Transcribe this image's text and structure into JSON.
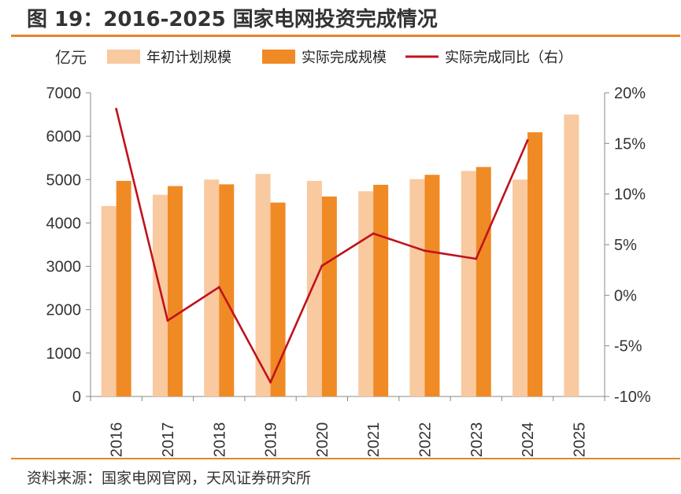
{
  "figure": {
    "title": "图 19：2016-2025 国家电网投资完成情况",
    "source": "资料来源：国家电网官网，天风证券研究所"
  },
  "chart_data": {
    "type": "bar",
    "categories": [
      "2016",
      "2017",
      "2018",
      "2019",
      "2020",
      "2021",
      "2022",
      "2023",
      "2024",
      "2025"
    ],
    "y_unit_label": "亿元",
    "ylim": [
      0,
      7000
    ],
    "y_ticks": [
      "0",
      "1000",
      "2000",
      "3000",
      "4000",
      "5000",
      "6000",
      "7000"
    ],
    "y2lim": [
      -10,
      20
    ],
    "y2_ticks": [
      "-10%",
      "-5%",
      "0%",
      "5%",
      "10%",
      "15%",
      "20%"
    ],
    "legend_position": "top",
    "grid": false,
    "series": [
      {
        "name": "年初计划规模",
        "kind": "bar",
        "axis": "left",
        "color": "#F9C9A0",
        "values": [
          4390,
          4650,
          5000,
          5130,
          4970,
          4730,
          5010,
          5200,
          5000,
          6500
        ]
      },
      {
        "name": "实际完成规模",
        "kind": "bar",
        "axis": "left",
        "color": "#F08A24",
        "values": [
          4970,
          4850,
          4890,
          4470,
          4610,
          4880,
          5110,
          5290,
          6090,
          null
        ]
      },
      {
        "name": "实际完成同比（右）",
        "kind": "line",
        "axis": "right",
        "color": "#C0121C",
        "values": [
          18.4,
          -2.5,
          0.8,
          -8.6,
          2.9,
          6.1,
          4.4,
          3.6,
          15.3,
          null
        ]
      }
    ]
  }
}
